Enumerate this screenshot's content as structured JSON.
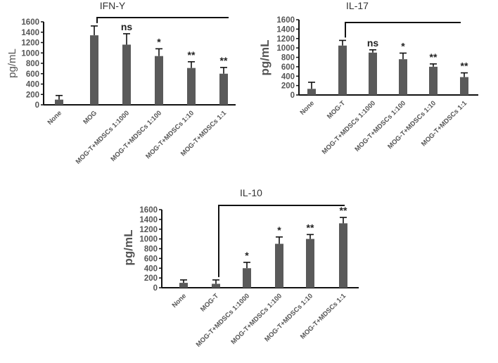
{
  "chart_data": [
    {
      "type": "bar",
      "title": "IFN-Y",
      "ylabel": "pg/mL",
      "ylim": [
        0,
        1600
      ],
      "yticks": [
        0,
        200,
        400,
        600,
        800,
        1000,
        1200,
        1400,
        1600
      ],
      "categories": [
        "None",
        "MOG",
        "MOG-T+MDSCs 1:1000",
        "MOG-T+MDSCs 1:100",
        "MOG-T+MDSCs 1:10",
        "MOG-T+MDSCs 1:1"
      ],
      "values": [
        100,
        1340,
        1160,
        940,
        710,
        600
      ],
      "error_upper": [
        180,
        1520,
        1370,
        1080,
        830,
        720
      ],
      "significance": [
        "",
        "",
        "ns",
        "*",
        "**",
        "**"
      ],
      "bracket_from": "MOG",
      "bar_color": "#5a5a5a"
    },
    {
      "type": "bar",
      "title": "IL-17",
      "ylabel": "pg/mL",
      "ylim": [
        0,
        1600
      ],
      "yticks": [
        0,
        200,
        400,
        600,
        800,
        1000,
        1200,
        1400,
        1600
      ],
      "categories": [
        "None",
        "MOG-T",
        "MOG-T+MDSCs 1:1000",
        "MOG-T+MDSCs 1:100",
        "MOG-T+MDSCs 1:10",
        "MOG-T+MDSCs 1:1"
      ],
      "values": [
        130,
        1050,
        900,
        760,
        600,
        380
      ],
      "error_upper": [
        270,
        1160,
        960,
        890,
        660,
        470
      ],
      "significance": [
        "",
        "",
        "ns",
        "*",
        "**",
        "**"
      ],
      "bracket_from": "MOG-T",
      "bar_color": "#5a5a5a"
    },
    {
      "type": "bar",
      "title": "IL-10",
      "ylabel": "pg/mL",
      "ylim": [
        0,
        1600
      ],
      "yticks": [
        0,
        200,
        400,
        600,
        800,
        1000,
        1200,
        1400,
        1600
      ],
      "categories": [
        "None",
        "MOG-T",
        "MOG-T+MDSCs 1:1000",
        "MOG-T+MDSCs 1:100",
        "MOG-T+MDSCs 1:10",
        "MOG-T+MDSCs 1:1"
      ],
      "values": [
        100,
        80,
        400,
        900,
        1000,
        1320
      ],
      "error_upper": [
        160,
        160,
        520,
        1040,
        1090,
        1440
      ],
      "significance": [
        "",
        "",
        "*",
        "*",
        "**",
        "**"
      ],
      "bracket_from": "MOG-T",
      "bar_color": "#5a5a5a"
    }
  ]
}
